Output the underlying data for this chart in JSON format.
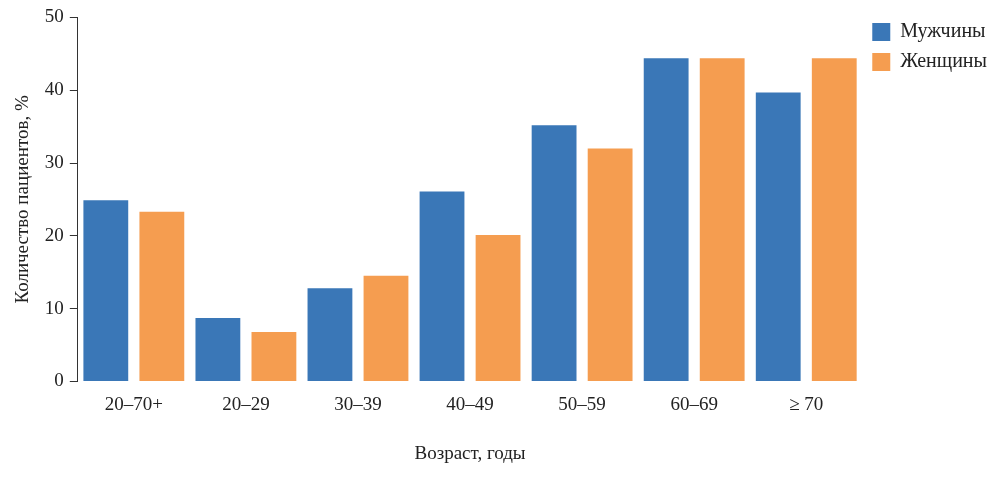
{
  "chart_data": {
    "type": "bar",
    "xlabel": "Возраст, годы",
    "ylabel": "Количество пациентов, %",
    "categories": [
      "20–70+",
      "20–29",
      "30–39",
      "40–49",
      "50–59",
      "60–69",
      "≥ 70"
    ],
    "series": [
      {
        "name": "Мужчины",
        "color": "#3a77b7",
        "values": [
          24.9,
          8.7,
          12.8,
          26.1,
          35.2,
          44.4,
          39.7
        ]
      },
      {
        "name": "Женщины",
        "color": "#f59d50",
        "values": [
          23.3,
          6.8,
          14.5,
          20.1,
          32.0,
          44.4,
          44.4
        ]
      }
    ],
    "ylim": [
      0,
      50
    ],
    "yticks": [
      0,
      10,
      20,
      30,
      40,
      50
    ],
    "grid": false,
    "legend": "top right"
  }
}
